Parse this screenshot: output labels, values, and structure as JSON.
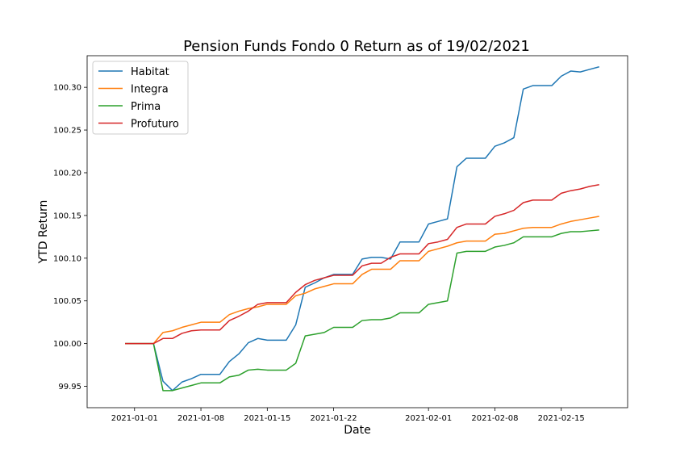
{
  "chart_data": {
    "type": "line",
    "title": "Pension Funds Fondo 0 Return as of 19/02/2021",
    "xlabel": "Date",
    "ylabel": "YTD Return",
    "x_ticks": [
      "2021-01-01",
      "2021-01-08",
      "2021-01-15",
      "2021-01-22",
      "2021-02-01",
      "2021-02-08",
      "2021-02-15"
    ],
    "y_ticks": [
      "99.95",
      "100.00",
      "100.05",
      "100.10",
      "100.15",
      "100.20",
      "100.25",
      "100.30"
    ],
    "ylim": [
      99.925,
      100.337
    ],
    "xlim": [
      "2020-12-27",
      "2021-02-22"
    ],
    "grid": false,
    "legend_position": "top-left",
    "x": [
      "2020-12-31",
      "2021-01-01",
      "2021-01-02",
      "2021-01-03",
      "2021-01-04",
      "2021-01-05",
      "2021-01-06",
      "2021-01-07",
      "2021-01-08",
      "2021-01-09",
      "2021-01-10",
      "2021-01-11",
      "2021-01-12",
      "2021-01-13",
      "2021-01-14",
      "2021-01-15",
      "2021-01-16",
      "2021-01-17",
      "2021-01-18",
      "2021-01-19",
      "2021-01-20",
      "2021-01-21",
      "2021-01-22",
      "2021-01-23",
      "2021-01-24",
      "2021-01-25",
      "2021-01-26",
      "2021-01-27",
      "2021-01-28",
      "2021-01-29",
      "2021-01-30",
      "2021-01-31",
      "2021-02-01",
      "2021-02-02",
      "2021-02-03",
      "2021-02-04",
      "2021-02-05",
      "2021-02-06",
      "2021-02-07",
      "2021-02-08",
      "2021-02-09",
      "2021-02-10",
      "2021-02-11",
      "2021-02-12",
      "2021-02-13",
      "2021-02-14",
      "2021-02-15",
      "2021-02-16",
      "2021-02-17",
      "2021-02-18",
      "2021-02-19"
    ],
    "series": [
      {
        "name": "Habitat",
        "color": "#1f77b4",
        "values": [
          100.0,
          100.0,
          100.0,
          100.0,
          99.956,
          99.945,
          99.955,
          99.959,
          99.964,
          99.964,
          99.964,
          99.979,
          99.988,
          100.001,
          100.006,
          100.004,
          100.004,
          100.004,
          100.022,
          100.066,
          100.071,
          100.077,
          100.081,
          100.081,
          100.081,
          100.099,
          100.101,
          100.101,
          100.099,
          100.119,
          100.119,
          100.119,
          100.14,
          100.143,
          100.146,
          100.207,
          100.217,
          100.217,
          100.217,
          100.231,
          100.235,
          100.241,
          100.298,
          100.302,
          100.302,
          100.302,
          100.313,
          100.319,
          100.318,
          100.321,
          100.324
        ]
      },
      {
        "name": "Integra",
        "color": "#ff7f0e",
        "values": [
          100.0,
          100.0,
          100.0,
          100.0,
          100.013,
          100.015,
          100.019,
          100.022,
          100.025,
          100.025,
          100.025,
          100.034,
          100.038,
          100.041,
          100.043,
          100.046,
          100.046,
          100.046,
          100.056,
          100.059,
          100.064,
          100.067,
          100.07,
          100.07,
          100.07,
          100.081,
          100.087,
          100.087,
          100.087,
          100.097,
          100.097,
          100.097,
          100.108,
          100.111,
          100.114,
          100.118,
          100.12,
          100.12,
          100.12,
          100.128,
          100.129,
          100.132,
          100.135,
          100.136,
          100.136,
          100.136,
          100.14,
          100.143,
          100.145,
          100.147,
          100.149
        ]
      },
      {
        "name": "Prima",
        "color": "#2ca02c",
        "values": [
          100.0,
          100.0,
          100.0,
          100.0,
          99.945,
          99.945,
          99.948,
          99.951,
          99.954,
          99.954,
          99.954,
          99.961,
          99.963,
          99.969,
          99.97,
          99.969,
          99.969,
          99.969,
          99.977,
          100.009,
          100.011,
          100.013,
          100.019,
          100.019,
          100.019,
          100.027,
          100.028,
          100.028,
          100.03,
          100.036,
          100.036,
          100.036,
          100.046,
          100.048,
          100.05,
          100.106,
          100.108,
          100.108,
          100.108,
          100.113,
          100.115,
          100.118,
          100.125,
          100.125,
          100.125,
          100.125,
          100.129,
          100.131,
          100.131,
          100.132,
          100.133
        ]
      },
      {
        "name": "Profuturo",
        "color": "#d62728",
        "values": [
          100.0,
          100.0,
          100.0,
          100.0,
          100.006,
          100.006,
          100.012,
          100.015,
          100.016,
          100.016,
          100.016,
          100.027,
          100.032,
          100.038,
          100.046,
          100.048,
          100.048,
          100.048,
          100.06,
          100.069,
          100.074,
          100.077,
          100.08,
          100.08,
          100.08,
          100.091,
          100.094,
          100.094,
          100.101,
          100.105,
          100.105,
          100.105,
          100.117,
          100.119,
          100.122,
          100.136,
          100.14,
          100.14,
          100.14,
          100.149,
          100.152,
          100.156,
          100.165,
          100.168,
          100.168,
          100.168,
          100.176,
          100.179,
          100.181,
          100.184,
          100.186
        ]
      }
    ]
  }
}
